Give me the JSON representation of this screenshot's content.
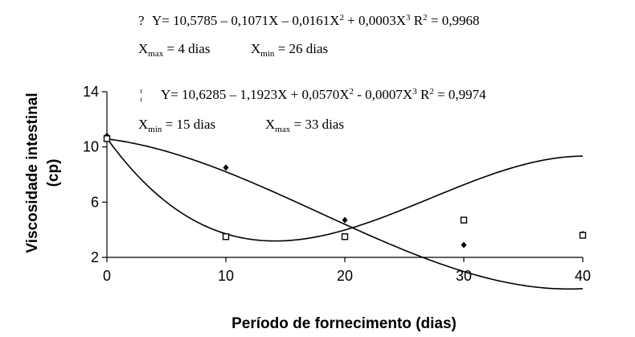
{
  "chart_data": {
    "type": "scatter",
    "xlabel": "Período de fornecimento (dias)",
    "ylabel_line1": "Viscosidade intestinal",
    "ylabel_line2": "(cp)",
    "xlim": [
      0,
      40
    ],
    "ylim": [
      2,
      14
    ],
    "x_ticks": [
      0,
      10,
      20,
      30,
      40
    ],
    "y_ticks": [
      2,
      6,
      10,
      14
    ],
    "x_tick_labels": [
      "0",
      "10",
      "20",
      "30",
      "40"
    ],
    "y_tick_labels": [
      "2",
      "6",
      "10",
      "14"
    ],
    "grid": false,
    "series": [
      {
        "marker": "diamond",
        "symbol_text": "?",
        "points": [
          {
            "x": 0,
            "y": 10.8
          },
          {
            "x": 10,
            "y": 8.5
          },
          {
            "x": 20,
            "y": 4.7
          },
          {
            "x": 30,
            "y": 2.9
          },
          {
            "x": 40,
            "y": 3.7
          }
        ],
        "fit_coefficients": [
          10.5785,
          -0.1071,
          -0.0161,
          0.0003
        ],
        "equation": {
          "prefix": "Y= 10,5785 –  0,1071X –  0,0161X",
          "mid": " + 0,0003X",
          "r2_label": "  R",
          "r2_value": " = 0,9968",
          "sup2": "2",
          "sup3": "3"
        },
        "extremes": {
          "first_label": "X",
          "first_sub": "max",
          "first_value": " = 4 dias",
          "second_label": "X",
          "second_sub": "min",
          "second_value": " = 26 dias"
        }
      },
      {
        "marker": "square",
        "symbol_text": "¦",
        "points": [
          {
            "x": 0,
            "y": 10.6
          },
          {
            "x": 10,
            "y": 3.5
          },
          {
            "x": 20,
            "y": 3.5
          },
          {
            "x": 30,
            "y": 4.7
          },
          {
            "x": 40,
            "y": 3.6
          }
        ],
        "fit_coefficients": [
          10.6285,
          -1.1923,
          0.057,
          -0.0007
        ],
        "equation": {
          "prefix": "Y= 10,6285 – 1,1923X +  0,0570X",
          "mid": " - 0,0007X",
          "r2_label": "  R",
          "r2_value": " = 0,9974",
          "sup2": "2",
          "sup3": "3"
        },
        "extremes": {
          "first_label": "X",
          "first_sub": "min",
          "first_value": " = 15 dias",
          "second_label": "X",
          "second_sub": "max",
          "second_value": " = 33 dias"
        }
      }
    ]
  }
}
